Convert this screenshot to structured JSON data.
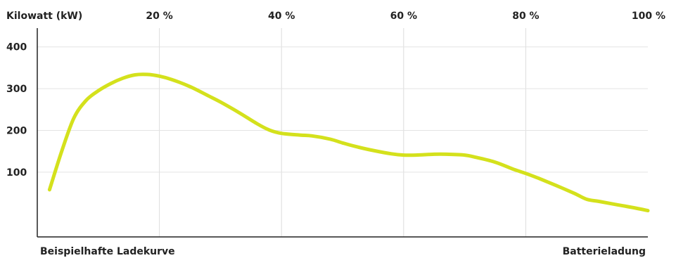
{
  "chart_data": {
    "type": "line",
    "title": "Beispielhafte Ladekurve",
    "ylabel": "Kilowatt (kW)",
    "xlabel": "Batterieladung",
    "x_ticks": [
      {
        "value": 20,
        "label": "20 %"
      },
      {
        "value": 40,
        "label": "40 %"
      },
      {
        "value": 60,
        "label": "60 %"
      },
      {
        "value": 80,
        "label": "80 %"
      },
      {
        "value": 100,
        "label": "100 %"
      }
    ],
    "y_ticks": [
      {
        "value": 100,
        "label": "100"
      },
      {
        "value": 200,
        "label": "200"
      },
      {
        "value": 300,
        "label": "300"
      },
      {
        "value": 400,
        "label": "400"
      }
    ],
    "xlim": [
      0,
      100
    ],
    "ylim": [
      -55,
      445
    ],
    "grid": true,
    "color": "#d4e11c",
    "series": [
      {
        "x": [
          2,
          4,
          6,
          8,
          10,
          12,
          14,
          16,
          18,
          20,
          22,
          25,
          28,
          30,
          33,
          36,
          38,
          40,
          43,
          45,
          48,
          50,
          52,
          55,
          58,
          60,
          62,
          65,
          67,
          70,
          72,
          75,
          78,
          80,
          82,
          85,
          88,
          90,
          92,
          95,
          98,
          100
        ],
        "y": [
          58,
          150,
          230,
          272,
          295,
          312,
          325,
          333,
          334,
          330,
          322,
          305,
          283,
          268,
          243,
          216,
          201,
          193,
          189,
          187,
          179,
          170,
          162,
          152,
          144,
          141,
          141,
          143,
          143,
          141,
          135,
          124,
          107,
          97,
          86,
          68,
          49,
          35,
          30,
          22,
          14,
          8
        ]
      }
    ]
  }
}
